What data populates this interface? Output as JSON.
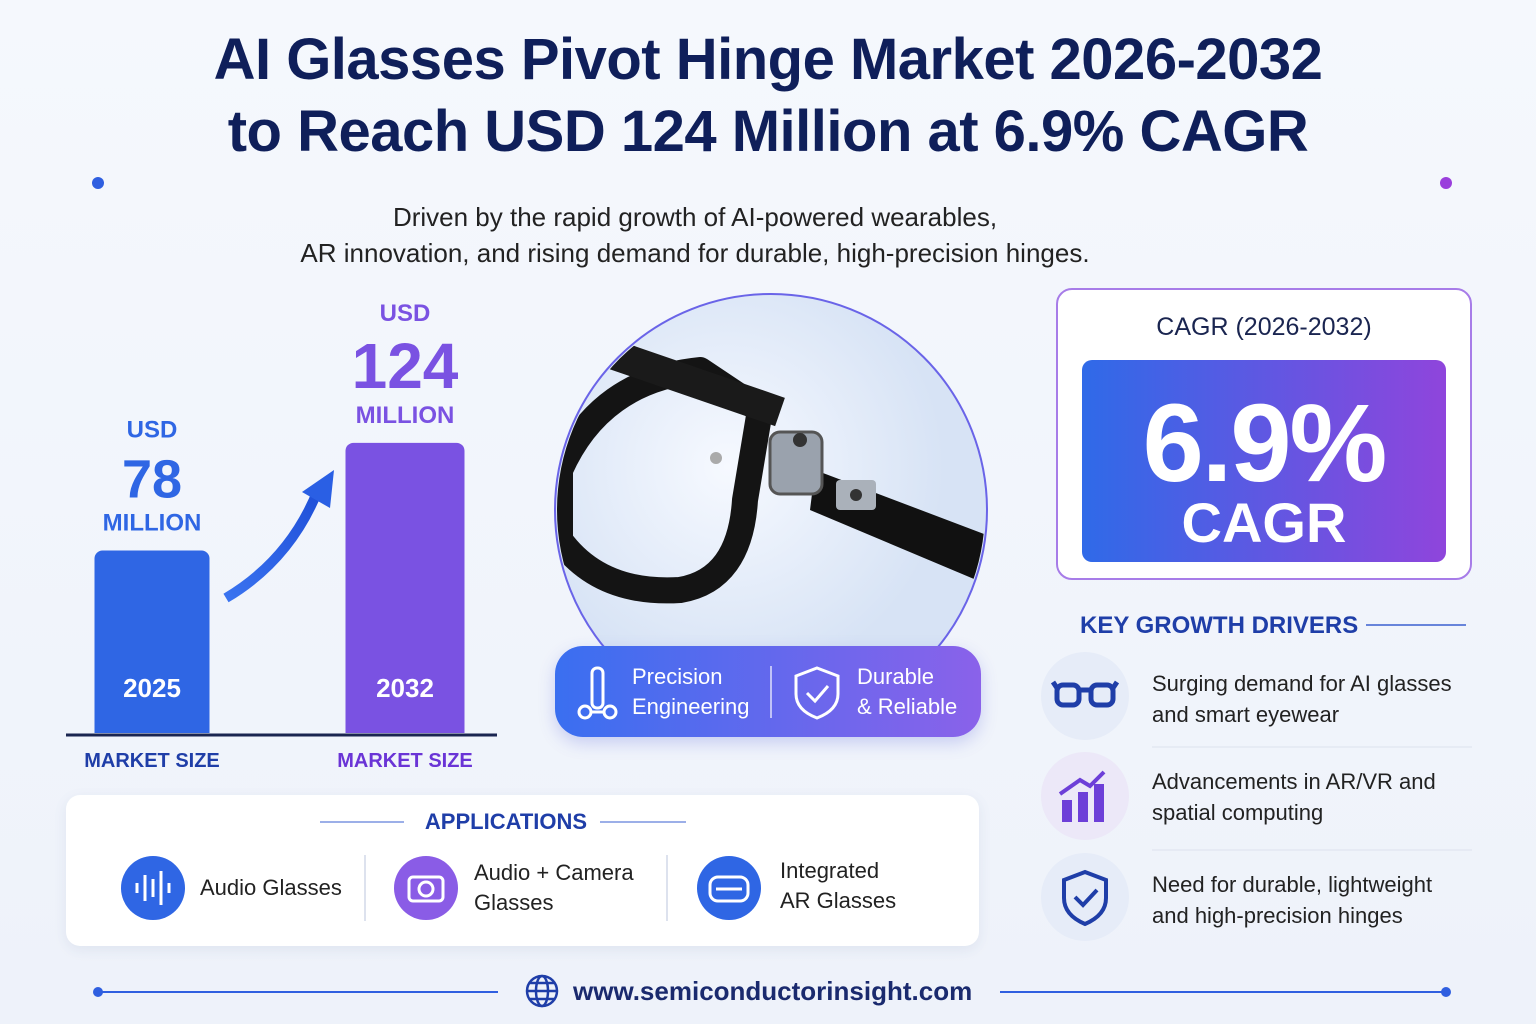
{
  "header": {
    "title": [
      "AI Glasses Pivot Hinge Market 2026-2032",
      "to Reach USD 124 Million at 6.9% CAGR"
    ],
    "subtitle": [
      "Driven by the rapid growth of AI-powered wearables,",
      "AR innovation, and rising demand for durable, high-precision hinges."
    ]
  },
  "chart_data": {
    "type": "bar",
    "categories": [
      "2025",
      "2032"
    ],
    "values": [
      78,
      124
    ],
    "colors": [
      "#2f66e4",
      "#7a52e2"
    ],
    "value_prefix": "USD",
    "value_suffix": "MILLION",
    "x_label": "MARKET SIZE"
  },
  "features": [
    {
      "lines": [
        "Precision",
        "Engineering"
      ]
    },
    {
      "lines": [
        "Durable",
        "& Reliable"
      ]
    }
  ],
  "cagr": {
    "label": "CAGR (2026-2032)",
    "value": "6.9%",
    "unit": "CAGR"
  },
  "drivers": {
    "title": "KEY GROWTH DRIVERS",
    "items": [
      [
        "Surging demand for AI glasses",
        "and smart eyewear"
      ],
      [
        "Advancements in AR/VR and",
        "spatial computing"
      ],
      [
        "Need for durable, lightweight",
        "and high-precision hinges"
      ]
    ]
  },
  "applications": {
    "title": "APPLICATIONS",
    "items": [
      [
        "Audio Glasses"
      ],
      [
        "Audio + Camera",
        "Glasses"
      ],
      [
        "Integrated",
        "AR Glasses"
      ]
    ]
  },
  "footer": {
    "website": "www.semiconductorinsight.com"
  }
}
